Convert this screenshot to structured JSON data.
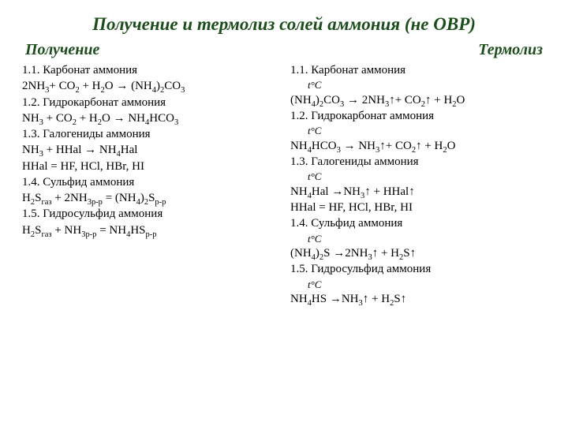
{
  "colors": {
    "heading": "#1a4d1a",
    "body": "#000000",
    "background": "#ffffff"
  },
  "typography": {
    "title_fontsize": 23,
    "subheader_fontsize": 20,
    "body_fontsize": 15,
    "font_family": "Times New Roman"
  },
  "title": "Получение  и термолиз солей аммония (не ОВР)",
  "subheaders": {
    "left": "Получение",
    "right": "Термолиз"
  },
  "left": {
    "h1": "1.1. Карбонат аммония",
    "eq1_a": "2NH",
    "eq1_b": "+ CO",
    "eq1_c": " + H",
    "eq1_d": "O → (NH",
    "eq1_e": ")",
    "eq1_f": "CO",
    "h2": "1.2. Гидрокарбонат аммония",
    "eq2_a": "NH",
    "eq2_b": " + CO",
    "eq2_c": " + H",
    "eq2_d": "O → NH",
    "eq2_e": "HCO",
    "h3": "1.3. Галогениды аммония",
    "eq3_a": "NH",
    "eq3_b": "  + НHal → NH",
    "eq3_c": "Hal",
    "eq3_def": "НHal  = HF, HCl, HBr, HI",
    "h4": "1.4. Сульфид аммония",
    "eq4_a": "H",
    "eq4_b": "S",
    "eq4_c": " + 2NH",
    "eq4_d": " = (NH",
    "eq4_e": ")",
    "eq4_f": "S",
    "h5": "1.5. Гидросульфид аммония",
    "eq5_a": "H",
    "eq5_b": "S",
    "eq5_c": " + NH",
    "eq5_d": " = NH",
    "eq5_e": "HS",
    "sub3": "3",
    "sub2": "2",
    "sub4": "4",
    "sub_gaz": "газ",
    "sub_rp": "р-р",
    "sub_3rp": "3р-р"
  },
  "right": {
    "h1": "1.1. Карбонат аммония",
    "tc": "t°C",
    "eq1_a": "(NH",
    "eq1_b": ")",
    "eq1_c": "CO",
    "eq1_d": " → 2NH",
    "eq1_e": "↑+ CO",
    "eq1_f": "↑ + H",
    "eq1_g": "O",
    "h2": "1.2. Гидрокарбонат аммония",
    "eq2_a": "NH",
    "eq2_b": "HCO",
    "eq2_c": " → NH",
    "eq2_d": "↑+ CO",
    "eq2_e": "↑ + H",
    "eq2_f": "O",
    "h3": "1.3. Галогениды аммония",
    "eq3_a": "NH",
    "eq3_b": "Hal →NH",
    "eq3_c": "↑ + НHal↑",
    "eq3_def": "НHal  = HF, HCl, HBr, HI",
    "h4": "1.4. Сульфид аммония",
    "eq4_a": "(NH",
    "eq4_b": ")",
    "eq4_c": "S  →2NH",
    "eq4_d": "↑ + H",
    "eq4_e": "S↑",
    "h5": "1.5. Гидросульфид аммония",
    "eq5_a": "NH",
    "eq5_b": "НS  →NH",
    "eq5_c": "↑ + H",
    "eq5_d": "S↑",
    "sub3": "3",
    "sub2": "2",
    "sub4": "4"
  }
}
